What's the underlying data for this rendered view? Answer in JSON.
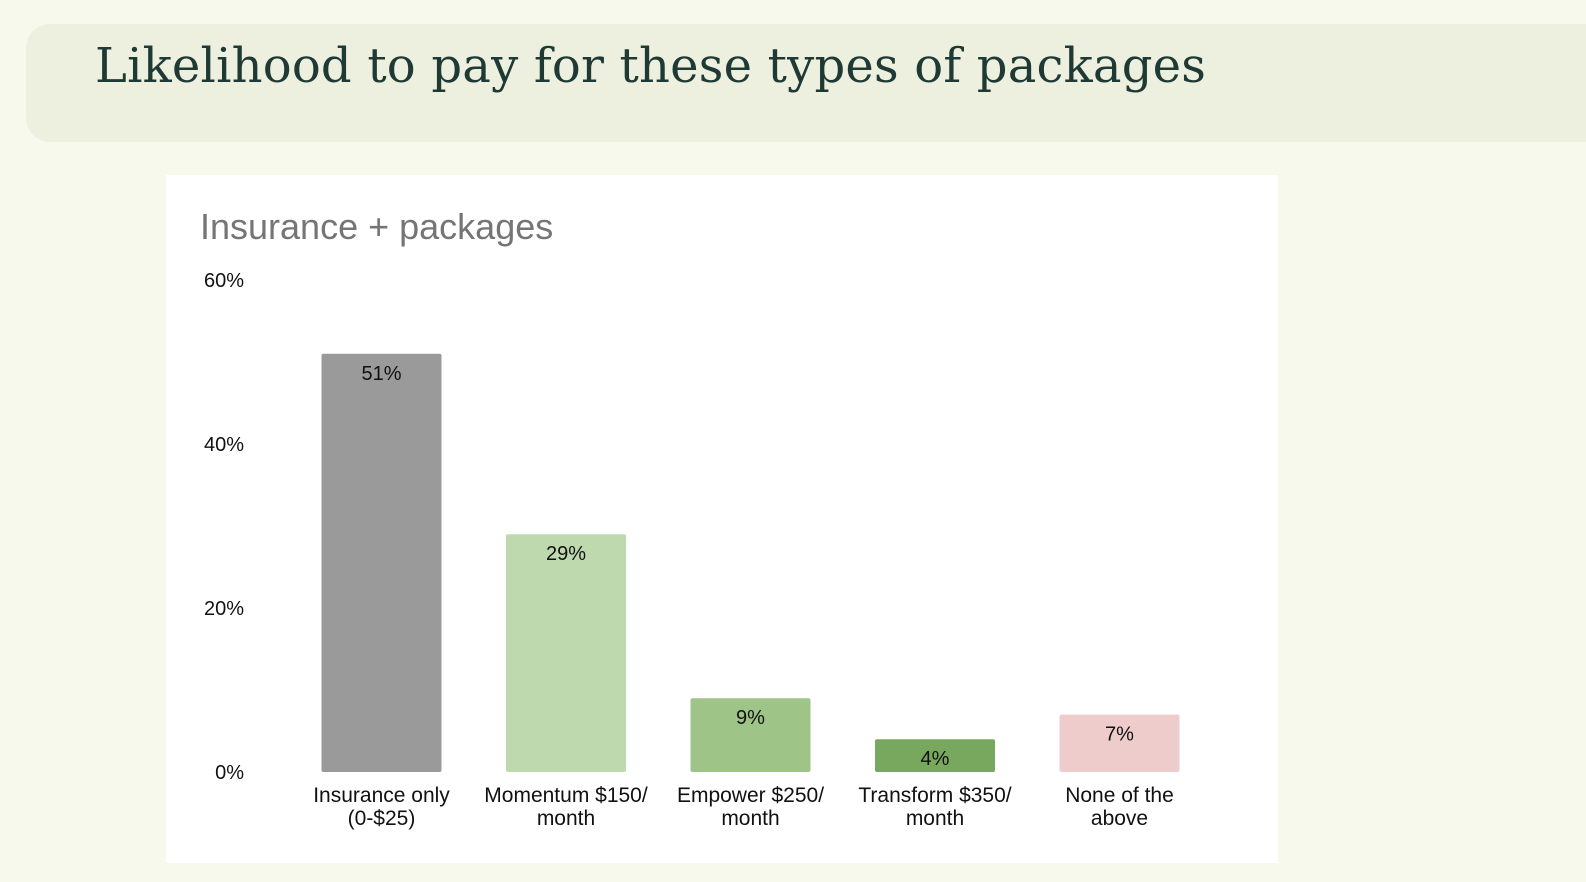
{
  "page": {
    "title": "Likelihood to pay for these types of packages"
  },
  "chart_data": {
    "type": "bar",
    "title": "Insurance + packages",
    "xlabel": "",
    "ylabel": "",
    "ylim": [
      0,
      60
    ],
    "y_ticks": [
      "0%",
      "20%",
      "40%",
      "60%"
    ],
    "grid": false,
    "categories": [
      [
        "Insurance only",
        "(0-$25)"
      ],
      [
        "Momentum $150/",
        "month"
      ],
      [
        "Empower $250/",
        "month"
      ],
      [
        "Transform $350/",
        "month"
      ],
      [
        "None of the",
        "above"
      ]
    ],
    "values": [
      51,
      29,
      9,
      4,
      7
    ],
    "data_labels": [
      "51%",
      "29%",
      "9%",
      "4%",
      "7%"
    ],
    "colors": [
      "#9a9a9a",
      "#bfd9ae",
      "#9fc487",
      "#77a85d",
      "#efcccc"
    ]
  }
}
